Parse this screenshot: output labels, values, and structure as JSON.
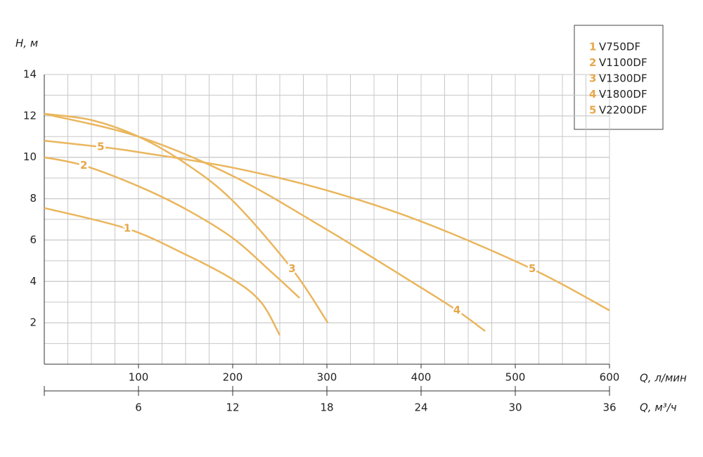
{
  "chart_data": {
    "type": "line",
    "y_label": "H, м",
    "x_label": "Q, л/мин",
    "x2_label": "Q, м³/ч",
    "xlim": [
      0,
      600
    ],
    "xticks": [
      100,
      200,
      300,
      400,
      500,
      600
    ],
    "x2lim": [
      0,
      36
    ],
    "x2ticks": [
      6,
      12,
      18,
      24,
      30,
      36
    ],
    "ylim": [
      0,
      14
    ],
    "yticks": [
      2,
      4,
      6,
      8,
      10,
      12,
      14
    ],
    "grid": true,
    "legend": "top-right",
    "series": [
      {
        "label": "1",
        "name": "V750DF",
        "color": "#eab65d",
        "x": [
          0,
          88,
          150,
          200,
          230,
          250
        ],
        "values": [
          7.55,
          6.55,
          5.3,
          4.1,
          3.0,
          1.4
        ]
      },
      {
        "label": "2",
        "name": "V1100DF",
        "color": "#eab65d",
        "x": [
          0,
          42,
          100,
          150,
          200,
          240,
          271
        ],
        "values": [
          10.0,
          9.6,
          8.6,
          7.5,
          6.1,
          4.5,
          3.2
        ]
      },
      {
        "label": "3",
        "name": "V1300DF",
        "color": "#eab65d",
        "x": [
          0,
          50,
          100,
          150,
          200,
          263,
          301
        ],
        "values": [
          12.1,
          11.8,
          11.0,
          9.7,
          7.9,
          4.6,
          2.0
        ]
      },
      {
        "label": "4",
        "name": "V1800DF",
        "color": "#eab65d",
        "x": [
          0,
          100,
          200,
          300,
          400,
          438,
          468
        ],
        "values": [
          12.1,
          11.0,
          9.1,
          6.5,
          3.7,
          2.6,
          1.6
        ]
      },
      {
        "label": "5",
        "name": "V2200DF",
        "color": "#eab65d",
        "x": [
          0,
          60,
          100,
          200,
          300,
          400,
          518,
          600
        ],
        "values": [
          10.8,
          10.5,
          10.25,
          9.5,
          8.4,
          6.9,
          4.6,
          2.6
        ]
      }
    ]
  }
}
